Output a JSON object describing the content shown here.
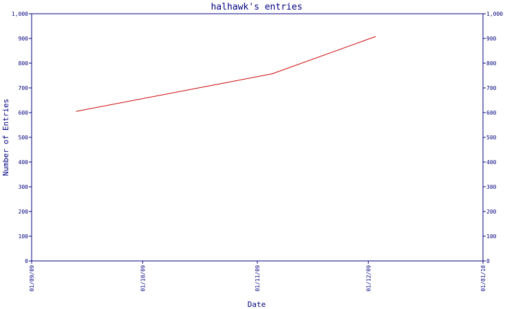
{
  "chart_data": {
    "type": "line",
    "title": "halhawk's entries",
    "xlabel": "Date",
    "ylabel": "Number of Entries",
    "ylim": [
      0,
      1000
    ],
    "yticks": [
      0,
      100,
      200,
      300,
      400,
      500,
      600,
      700,
      800,
      900,
      1000
    ],
    "ytick_labels": [
      "0",
      "100",
      "200",
      "300",
      "400",
      "500",
      "600",
      "700",
      "800",
      "900",
      "1,000"
    ],
    "xlim": [
      "2009-09-01",
      "2010-01-01"
    ],
    "xticks": [
      "2009-09-01",
      "2009-10-01",
      "2009-11-01",
      "2009-12-01",
      "2010-01-01"
    ],
    "xtick_labels": [
      "01/09/09",
      "01/10/09",
      "01/11/09",
      "01/12/09",
      "01/01/10"
    ],
    "grid": false,
    "series": [
      {
        "x": [
          "2009-09-13",
          "2009-11-05",
          "2009-12-03"
        ],
        "y": [
          605,
          757,
          908
        ]
      }
    ],
    "colors": {
      "axis": "#000080",
      "line": "#cc0000",
      "text": "#000080"
    }
  }
}
